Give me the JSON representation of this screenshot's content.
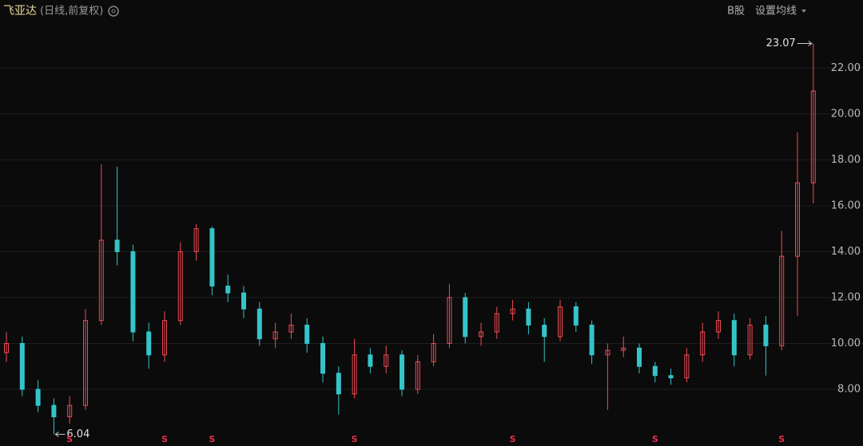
{
  "chart_data": {
    "type": "candlestick",
    "title": "飞亚达",
    "subtitle": "(日线,前复权)",
    "market_label": "B股",
    "menu_label": "设置均线",
    "open": [
      9.6,
      10,
      8,
      7.3,
      6.8,
      7.3,
      11,
      14.5,
      14,
      10.5,
      9.5,
      11,
      14,
      15,
      12.5,
      12.2,
      11.5,
      10.2,
      10.5,
      10.8,
      10,
      8.7,
      7.8,
      9.5,
      9,
      9.5,
      8,
      9.2,
      10,
      12,
      10.3,
      10.5,
      11.3,
      11.5,
      10.8,
      10.3,
      11.6,
      10.8,
      9.5,
      9.7,
      9.8,
      9.0,
      8.6,
      8.5,
      9.5,
      10.5,
      11,
      9.5,
      10.8,
      9.9,
      13.8,
      17
    ],
    "high": [
      10.5,
      10.3,
      8.4,
      7.6,
      7.7,
      11.5,
      17.8,
      17.7,
      14.3,
      10.9,
      11.4,
      14.4,
      15.2,
      15.1,
      13.0,
      12.5,
      11.8,
      10.9,
      11.3,
      11.1,
      10.3,
      9.0,
      10.2,
      9.8,
      9.9,
      9.7,
      9.5,
      10.4,
      12.6,
      12.2,
      10.9,
      11.6,
      11.9,
      11.8,
      11.1,
      11.9,
      11.8,
      11.0,
      10.0,
      10.3,
      10.0,
      9.2,
      8.9,
      9.8,
      10.9,
      11.4,
      11.3,
      11.1,
      11.2,
      14.9,
      19.2,
      23.07
    ],
    "low": [
      9.2,
      7.7,
      7.0,
      6.04,
      6.5,
      7.1,
      10.8,
      13.4,
      10.1,
      8.9,
      9.2,
      10.8,
      13.6,
      12.1,
      11.8,
      11.1,
      9.9,
      9.8,
      10.2,
      9.6,
      8.3,
      6.9,
      7.6,
      8.7,
      8.7,
      7.7,
      7.8,
      9.0,
      9.8,
      10.0,
      9.9,
      10.2,
      11.0,
      10.4,
      9.2,
      10.1,
      10.5,
      9.1,
      7.1,
      9.4,
      8.7,
      8.3,
      8.2,
      8.3,
      9.2,
      10.2,
      9.0,
      9.3,
      8.6,
      9.7,
      11.2,
      16.1
    ],
    "close": [
      10,
      8,
      7.3,
      6.8,
      7.3,
      11,
      14.5,
      14,
      10.5,
      9.5,
      11,
      14,
      15,
      12.5,
      12.2,
      11.5,
      10.2,
      10.5,
      10.8,
      10,
      8.7,
      7.8,
      9.5,
      9,
      9.5,
      8,
      9.2,
      10,
      12,
      10.3,
      10.5,
      11.3,
      11.5,
      10.8,
      10.3,
      11.6,
      10.8,
      9.5,
      9.7,
      9.8,
      9.0,
      8.6,
      8.5,
      9.5,
      10.5,
      11,
      9.5,
      10.8,
      9.9,
      13.8,
      17,
      21
    ],
    "up_color": "#ee4b55",
    "down_color": "#34c4c8",
    "grid": true,
    "ylim": [
      5.6,
      24.2
    ],
    "yticks": [
      {
        "value": 8,
        "label": "8.00"
      },
      {
        "value": 10,
        "label": "10.00"
      },
      {
        "value": 12,
        "label": "12.00"
      },
      {
        "value": 14,
        "label": "14.00"
      },
      {
        "value": 16,
        "label": "16.00"
      },
      {
        "value": 18,
        "label": "18.00"
      },
      {
        "value": 20,
        "label": "20.00"
      },
      {
        "value": 22,
        "label": "22.00"
      }
    ],
    "markers": [
      {
        "label": "S",
        "index": 4
      },
      {
        "label": "S",
        "index": 10
      },
      {
        "label": "S",
        "index": 13
      },
      {
        "label": "S",
        "index": 22
      },
      {
        "label": "S",
        "index": 32
      },
      {
        "label": "S",
        "index": 41
      },
      {
        "label": "S",
        "index": 49
      }
    ]
  }
}
